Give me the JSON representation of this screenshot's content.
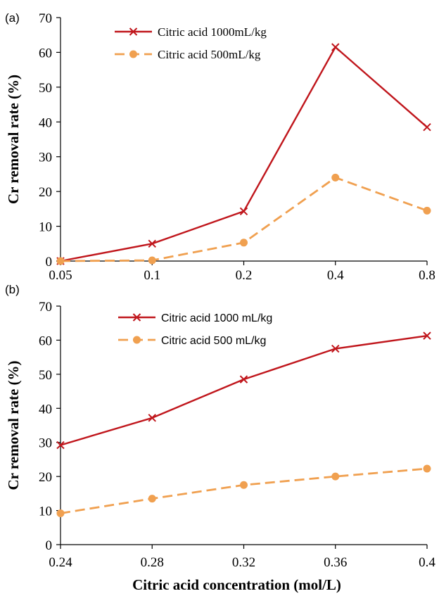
{
  "chart_data": [
    {
      "type": "line",
      "panel_label": "(a)",
      "categories": [
        "0.05",
        "0.1",
        "0.2",
        "0.4",
        "0.8"
      ],
      "ylabel": "Cr removal rate (%)",
      "xlabel": "",
      "ylim": [
        0,
        70
      ],
      "yticks": [
        "0",
        "10",
        "20",
        "30",
        "40",
        "50",
        "60",
        "70"
      ],
      "grid": false,
      "legend_position": "top-left",
      "series": [
        {
          "name": "Citric acid 1000mL/kg",
          "values": [
            0,
            5,
            14.3,
            61.5,
            38.5
          ],
          "color": "#c0161c",
          "marker": "x",
          "dash": "solid"
        },
        {
          "name": "Citric acid 500mL/kg",
          "values": [
            0,
            0.2,
            5.3,
            24,
            14.5
          ],
          "color": "#f0a050",
          "marker": "circle",
          "dash": "dashed"
        }
      ]
    },
    {
      "type": "line",
      "panel_label": "(b)",
      "categories": [
        "0.24",
        "0.28",
        "0.32",
        "0.36",
        "0.4"
      ],
      "ylabel": "Cr removal rate (%)",
      "xlabel": "Citric acid concentration (mol/L)",
      "ylim": [
        0,
        70
      ],
      "yticks": [
        "0",
        "10",
        "20",
        "30",
        "40",
        "50",
        "60",
        "70"
      ],
      "grid": false,
      "legend_position": "top-left",
      "series": [
        {
          "name": "Citric acid 1000 mL/kg",
          "values": [
            29.2,
            37.2,
            48.5,
            57.5,
            61.3
          ],
          "color": "#c0161c",
          "marker": "x",
          "dash": "solid"
        },
        {
          "name": "Citric acid 500 mL/kg",
          "values": [
            9.2,
            13.5,
            17.5,
            20,
            22.3
          ],
          "color": "#f0a050",
          "marker": "circle",
          "dash": "dashed"
        }
      ]
    }
  ]
}
